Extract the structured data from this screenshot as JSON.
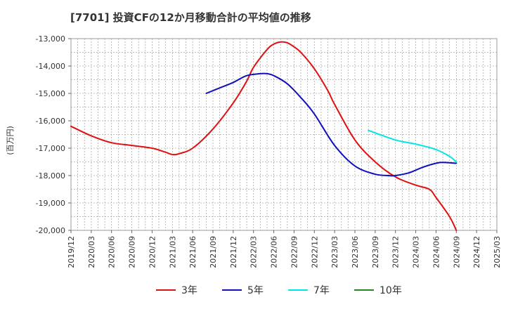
{
  "chart_data": {
    "type": "line",
    "title": "[7701]  投資CFの12か月移動合計の平均値の推移",
    "ylabel": "(百万円)",
    "xlabel": "",
    "ylim": [
      -20000,
      -13000
    ],
    "yticks": [
      -13000,
      -14000,
      -15000,
      -16000,
      -17000,
      -18000,
      -19000,
      -20000
    ],
    "ytick_labels": [
      "-13,000",
      "-14,000",
      "-15,000",
      "-16,000",
      "-17,000",
      "-18,000",
      "-19,000",
      "-20,000"
    ],
    "xticks": [
      "2019/12",
      "2020/03",
      "2020/06",
      "2020/09",
      "2020/12",
      "2021/03",
      "2021/06",
      "2021/09",
      "2021/12",
      "2022/03",
      "2022/06",
      "2022/09",
      "2022/12",
      "2023/03",
      "2023/06",
      "2023/09",
      "2023/12",
      "2024/03",
      "2024/06",
      "2024/09",
      "2024/12",
      "2025/03"
    ],
    "grid": true,
    "legend_position": "bottom",
    "series": [
      {
        "name": "3年",
        "color": "#dd1111",
        "x": [
          "2019/12",
          "2020/03",
          "2020/06",
          "2020/09",
          "2020/12",
          "2021/02",
          "2021/03",
          "2021/04",
          "2021/06",
          "2021/09",
          "2021/12",
          "2022/02",
          "2022/03",
          "2022/05",
          "2022/06",
          "2022/07",
          "2022/08",
          "2022/09",
          "2022/10",
          "2022/12",
          "2023/02",
          "2023/03",
          "2023/06",
          "2023/09",
          "2023/12",
          "2024/03",
          "2024/05",
          "2024/06",
          "2024/08",
          "2024/09"
        ],
        "values": [
          -16200,
          -16550,
          -16800,
          -16900,
          -17000,
          -17150,
          -17230,
          -17200,
          -17000,
          -16300,
          -15350,
          -14550,
          -14050,
          -13400,
          -13200,
          -13120,
          -13150,
          -13300,
          -13500,
          -14100,
          -14900,
          -15400,
          -16700,
          -17500,
          -18050,
          -18350,
          -18500,
          -18800,
          -19500,
          -20000
        ]
      },
      {
        "name": "5年",
        "color": "#1111bb",
        "x": [
          "2021/08",
          "2021/10",
          "2021/12",
          "2022/02",
          "2022/04",
          "2022/05",
          "2022/06",
          "2022/08",
          "2022/10",
          "2022/12",
          "2023/03",
          "2023/06",
          "2023/09",
          "2023/11",
          "2023/12",
          "2024/02",
          "2024/04",
          "2024/06",
          "2024/07",
          "2024/09"
        ],
        "values": [
          -15000,
          -14800,
          -14600,
          -14350,
          -14280,
          -14280,
          -14350,
          -14650,
          -15150,
          -15750,
          -16900,
          -17650,
          -17950,
          -18000,
          -18000,
          -17900,
          -17700,
          -17550,
          -17520,
          -17550
        ]
      },
      {
        "name": "7年",
        "color": "#00e6e6",
        "x": [
          "2023/08",
          "2023/12",
          "2024/03",
          "2024/06",
          "2024/08",
          "2024/09"
        ],
        "values": [
          -16350,
          -16700,
          -16850,
          -17050,
          -17300,
          -17500
        ]
      },
      {
        "name": "10年",
        "color": "#228822",
        "x": [],
        "values": []
      }
    ]
  }
}
